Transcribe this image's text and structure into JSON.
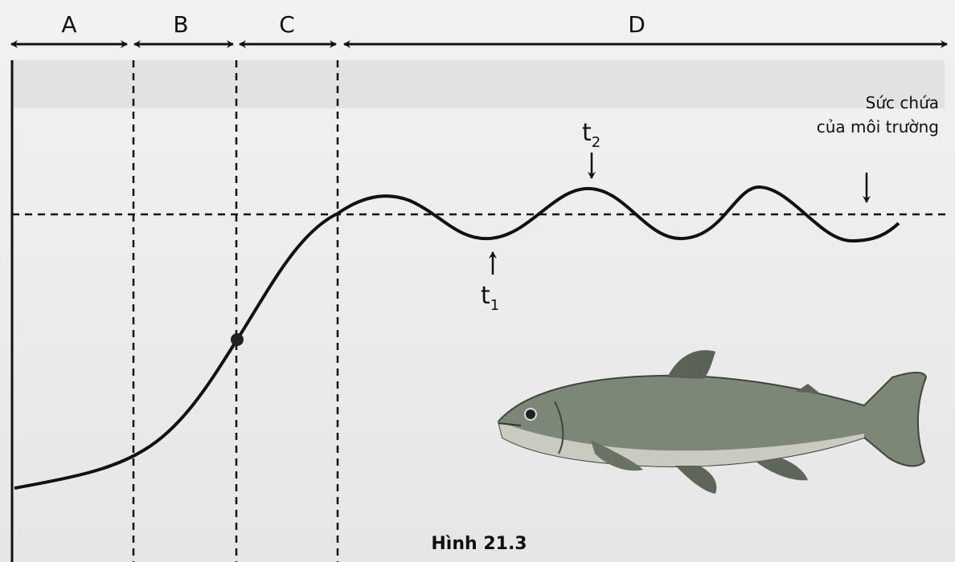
{
  "phases": [
    "A",
    "B",
    "C",
    "D"
  ],
  "markers": {
    "t1": {
      "base": "t",
      "sub": "1"
    },
    "t2": {
      "base": "t",
      "sub": "2"
    }
  },
  "capacity_label": [
    "Sức chứa",
    "của môi trường"
  ],
  "caption": "Hình 21.3",
  "colors": {
    "line": "#111111",
    "background": "#ebebeb",
    "fish": "#6f7a6a"
  }
}
